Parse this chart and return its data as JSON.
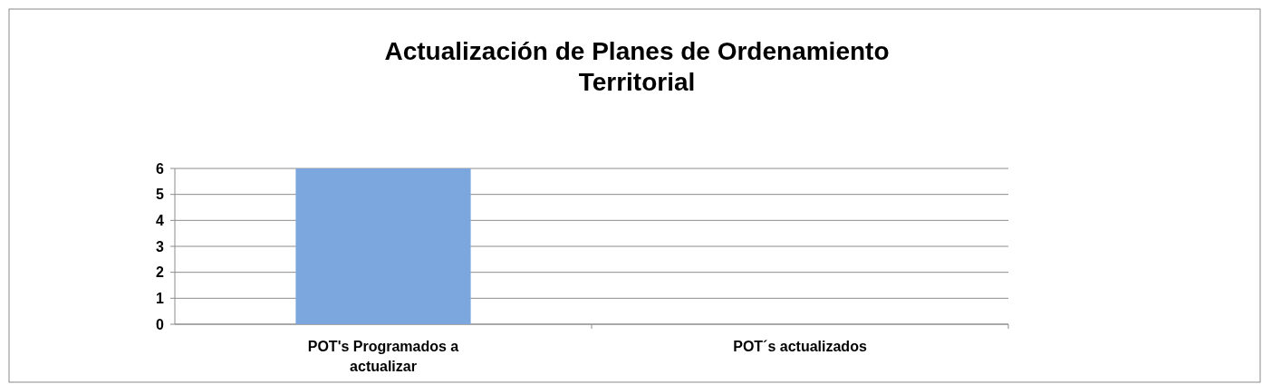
{
  "chart_data": {
    "type": "bar",
    "title": "Actualización de Planes de Ordenamiento Territorial",
    "categories": [
      "POT's Programados  a actualizar",
      "POT´s actualizados"
    ],
    "values": [
      6,
      0
    ],
    "colors": [
      "#7ba7de",
      "#10203b"
    ],
    "ylim": [
      0,
      6
    ],
    "yticks": [
      0,
      1,
      2,
      3,
      4,
      5,
      6
    ],
    "grid": "y"
  }
}
